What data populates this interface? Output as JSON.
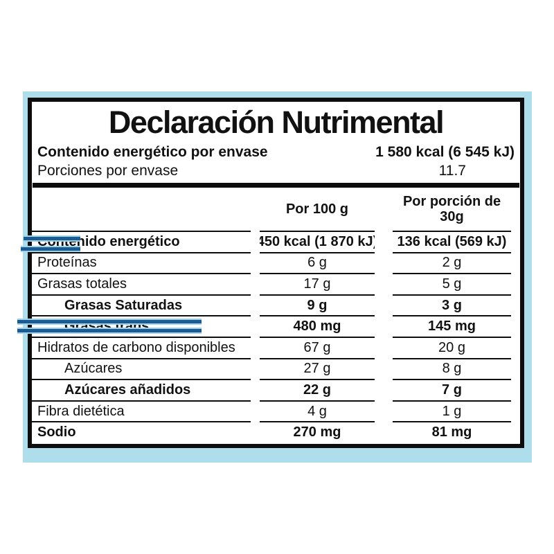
{
  "colors": {
    "panel_blue": "#aeddec",
    "line_black": "#0d0d0d",
    "marker_dark": "#1a5c91",
    "marker_light": "#a3d2e8"
  },
  "label": {
    "title": "Declaración Nutrimental",
    "summary": [
      {
        "label": "Contenido energético por envase",
        "value": "1 580 kcal (6 545 kJ)",
        "bold": true
      },
      {
        "label": "Porciones por envase",
        "value": "11.7",
        "bold": false
      }
    ],
    "columns": {
      "per_100g": "Por 100 g",
      "per_portion_line1": "Por porción de",
      "per_portion_line2": "30g"
    },
    "rows": [
      {
        "name": "Contenido energético",
        "per100": "450 kcal (1 870 kJ)",
        "perPortion": "136 kcal (569 kJ)",
        "bold": true,
        "indent": false
      },
      {
        "name": "Proteínas",
        "per100": "6 g",
        "perPortion": "2 g",
        "bold": false,
        "indent": false
      },
      {
        "name": "Grasas totales",
        "per100": "17 g",
        "perPortion": "5 g",
        "bold": false,
        "indent": false
      },
      {
        "name": "Grasas Saturadas",
        "per100": "9 g",
        "perPortion": "3 g",
        "bold": true,
        "indent": true
      },
      {
        "name": "Grasas trans",
        "per100": "480 mg",
        "perPortion": "145 mg",
        "bold": true,
        "indent": true
      },
      {
        "name": "Hidratos de carbono disponibles",
        "per100": "67 g",
        "perPortion": "20 g",
        "bold": false,
        "indent": false
      },
      {
        "name": "Azúcares",
        "per100": "27 g",
        "perPortion": "8 g",
        "bold": false,
        "indent": true
      },
      {
        "name": "Azúcares añadidos",
        "per100": "22 g",
        "perPortion": "7 g",
        "bold": true,
        "indent": true
      },
      {
        "name": "Fibra dietética",
        "per100": "4 g",
        "perPortion": "1 g",
        "bold": false,
        "indent": false
      },
      {
        "name": "Sodio",
        "per100": "270 mg",
        "perPortion": "81 mg",
        "bold": true,
        "indent": false
      }
    ]
  }
}
